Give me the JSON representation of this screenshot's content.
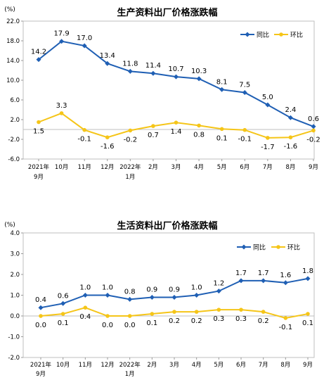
{
  "chart_data": [
    {
      "type": "line",
      "title": "生产资料出厂价格涨跌幅",
      "unit": "(%)",
      "ylim": [
        -6.0,
        22.0
      ],
      "yticks": [
        "22.0",
        "18.0",
        "14.0",
        "10.0",
        "6.0",
        "2.0",
        "-2.0",
        "-6.0"
      ],
      "categories": [
        {
          "top": "2021年",
          "bottom": "9月"
        },
        {
          "top": "10月",
          "bottom": ""
        },
        {
          "top": "11月",
          "bottom": ""
        },
        {
          "top": "12月",
          "bottom": ""
        },
        {
          "top": "2022年",
          "bottom": "1月"
        },
        {
          "top": "2月",
          "bottom": ""
        },
        {
          "top": "3月",
          "bottom": ""
        },
        {
          "top": "4月",
          "bottom": ""
        },
        {
          "top": "5月",
          "bottom": ""
        },
        {
          "top": "6月",
          "bottom": ""
        },
        {
          "top": "7月",
          "bottom": ""
        },
        {
          "top": "8月",
          "bottom": ""
        },
        {
          "top": "9月",
          "bottom": ""
        }
      ],
      "legend_position": "top-right",
      "grid": false,
      "series": [
        {
          "name": "同比",
          "color": "#1f5fb4",
          "values": [
            14.2,
            17.9,
            17.0,
            13.4,
            11.8,
            11.4,
            10.7,
            10.3,
            8.1,
            7.5,
            5.0,
            2.4,
            0.6
          ],
          "labels": [
            "14.2",
            "17.9",
            "17.0",
            "13.4",
            "11.8",
            "11.4",
            "10.7",
            "10.3",
            "8.1",
            "7.5",
            "5.0",
            "2.4",
            "0.6"
          ]
        },
        {
          "name": "环比",
          "color": "#f5c518",
          "values": [
            1.5,
            3.3,
            -0.1,
            -1.6,
            -0.2,
            0.7,
            1.4,
            0.8,
            0.1,
            -0.1,
            -1.7,
            -1.6,
            -0.2
          ],
          "labels": [
            "1.5",
            "3.3",
            "-0.1",
            "-1.6",
            "-0.2",
            "0.7",
            "1.4",
            "0.8",
            "0.1",
            "-0.1",
            "-1.7",
            "-1.6",
            "-0.2"
          ]
        }
      ]
    },
    {
      "type": "line",
      "title": "生活资料出厂价格涨跌幅",
      "unit": "(%)",
      "ylim": [
        -2.0,
        4.0
      ],
      "yticks": [
        "4.0",
        "3.0",
        "2.0",
        "1.0",
        "0.0",
        "-1.0",
        "-2.0"
      ],
      "categories": [
        {
          "top": "2021年",
          "bottom": "9月"
        },
        {
          "top": "10月",
          "bottom": ""
        },
        {
          "top": "11月",
          "bottom": ""
        },
        {
          "top": "12月",
          "bottom": ""
        },
        {
          "top": "2022年",
          "bottom": "1月"
        },
        {
          "top": "2月",
          "bottom": ""
        },
        {
          "top": "3月",
          "bottom": ""
        },
        {
          "top": "4月",
          "bottom": ""
        },
        {
          "top": "5月",
          "bottom": ""
        },
        {
          "top": "6月",
          "bottom": ""
        },
        {
          "top": "7月",
          "bottom": ""
        },
        {
          "top": "8月",
          "bottom": ""
        },
        {
          "top": "9月",
          "bottom": ""
        }
      ],
      "legend_position": "top-right",
      "grid": false,
      "series": [
        {
          "name": "同比",
          "color": "#1f5fb4",
          "values": [
            0.4,
            0.6,
            1.0,
            1.0,
            0.8,
            0.9,
            0.9,
            1.0,
            1.2,
            1.7,
            1.7,
            1.6,
            1.8
          ],
          "labels": [
            "0.4",
            "0.6",
            "1.0",
            "1.0",
            "0.8",
            "0.9",
            "0.9",
            "1.0",
            "1.2",
            "1.7",
            "1.7",
            "1.6",
            "1.8"
          ]
        },
        {
          "name": "环比",
          "color": "#f5c518",
          "values": [
            0.0,
            0.1,
            0.4,
            0.0,
            0.0,
            0.1,
            0.2,
            0.2,
            0.3,
            0.3,
            0.2,
            -0.1,
            0.1
          ],
          "labels": [
            "0.0",
            "0.1",
            "0.4",
            "0.0",
            "0.0",
            "0.1",
            "0.2",
            "0.2",
            "0.3",
            "0.3",
            "0.2",
            "-0.1",
            "0.1"
          ]
        }
      ]
    }
  ]
}
